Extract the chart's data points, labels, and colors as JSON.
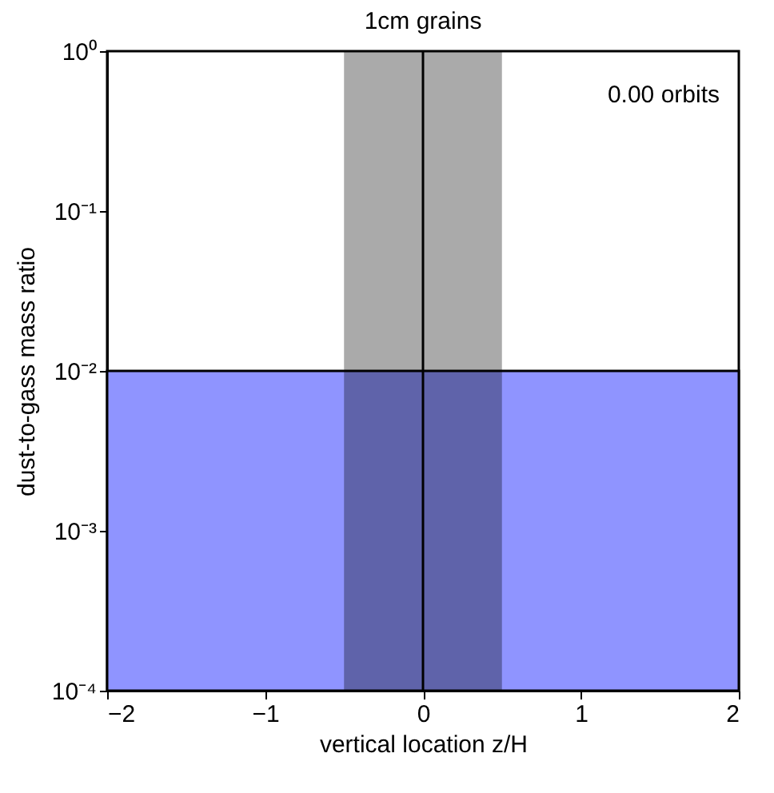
{
  "chart_data": {
    "type": "area",
    "title": "1cm grains",
    "xlabel": "vertical location  z/H",
    "ylabel": "dust-to-gass mass ratio",
    "x": [
      -2,
      2
    ],
    "series": [
      {
        "color": "#8f94ff",
        "values": [
          0.01,
          0.01
        ]
      }
    ],
    "xlim": [
      -2,
      2
    ],
    "xticks": [
      {
        "value": -2,
        "label": "−2"
      },
      {
        "value": -1,
        "label": "−1"
      },
      0,
      1,
      2
    ],
    "ylim": [
      0.0001,
      1
    ],
    "log": "y",
    "yticks": [
      {
        "value": 0.0001,
        "label": "10⁻⁴"
      },
      {
        "value": 0.001,
        "label": "10⁻³"
      },
      {
        "value": 0.01,
        "label": "10⁻²"
      },
      {
        "value": 0.1,
        "label": "10⁻¹"
      },
      {
        "value": 1,
        "label": "10⁰"
      }
    ],
    "bands": [
      {
        "axis": "x",
        "from": -0.5,
        "to": 0.5,
        "color": "#aaaaaa"
      }
    ],
    "ref_lines": [
      {
        "axis": "x",
        "value": 0
      }
    ],
    "annotations": [
      "0.00 orbits"
    ],
    "grid": false
  }
}
